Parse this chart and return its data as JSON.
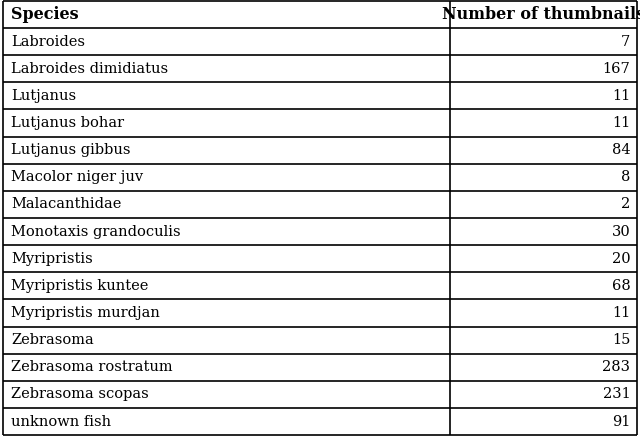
{
  "col1_header": "Species",
  "col2_header": "Number of thumbnails",
  "rows": [
    [
      "Labroides",
      "7"
    ],
    [
      "Labroides dimidiatus",
      "167"
    ],
    [
      "Lutjanus",
      "11"
    ],
    [
      "Lutjanus bohar",
      "11"
    ],
    [
      "Lutjanus gibbus",
      "84"
    ],
    [
      "Macolor niger juv",
      "8"
    ],
    [
      "Malacanthidae",
      "2"
    ],
    [
      "Monotaxis grandoculis",
      "30"
    ],
    [
      "Myripristis",
      "20"
    ],
    [
      "Myripristis kuntee",
      "68"
    ],
    [
      "Myripristis murdjan",
      "11"
    ],
    [
      "Zebrasoma",
      "15"
    ],
    [
      "Zebrasoma rostratum",
      "283"
    ],
    [
      "Zebrasoma scopas",
      "231"
    ],
    [
      "unknown fish",
      "91"
    ]
  ],
  "header_fontsize": 11.5,
  "cell_fontsize": 10.5,
  "border_color": "#000000",
  "text_color": "#000000",
  "col_split": 0.705,
  "fig_width": 6.4,
  "fig_height": 4.36,
  "dpi": 100
}
